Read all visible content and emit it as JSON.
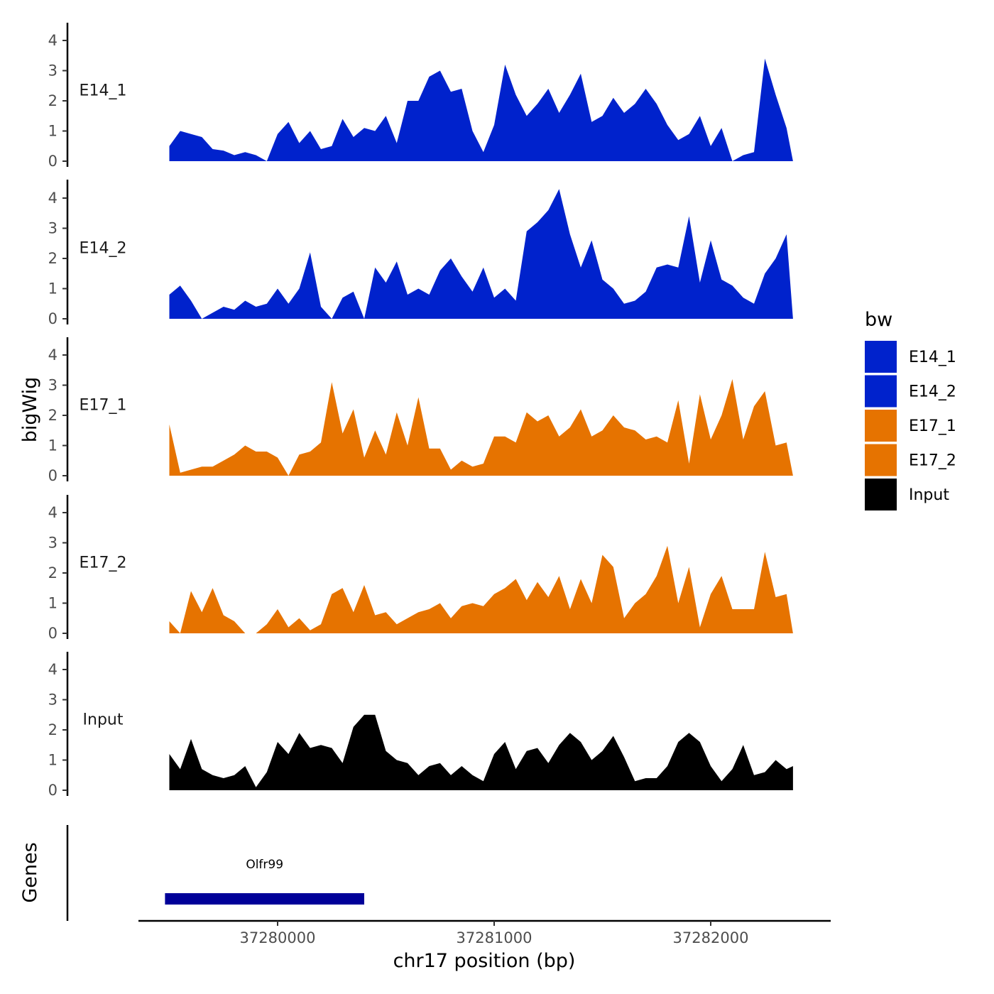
{
  "chart_data": {
    "type": "area",
    "xlabel": "chr17 position (bp)",
    "ylabel": "bigWig",
    "gene_track_label": "Genes",
    "xlim": [
      37279250,
      37282500
    ],
    "x_ticks": [
      37280000,
      37281000,
      37282000
    ],
    "x_tick_labels": [
      "37280000",
      "37281000",
      "37282000"
    ],
    "ylim": [
      0,
      4.6
    ],
    "y_ticks": [
      0,
      1,
      2,
      3,
      4
    ],
    "y_tick_labels": [
      "0",
      "1",
      "2",
      "3",
      "4"
    ],
    "legend": {
      "title": "bw",
      "position": "right",
      "entries": [
        {
          "label": "E14_1",
          "color": "#0022cc"
        },
        {
          "label": "E14_2",
          "color": "#0022cc"
        },
        {
          "label": "E17_1",
          "color": "#e67300"
        },
        {
          "label": "E17_2",
          "color": "#e67300"
        },
        {
          "label": "Input",
          "color": "#000000"
        }
      ]
    },
    "tracks": [
      {
        "name": "E14_1",
        "color": "#0022cc",
        "x": [
          37279500,
          37279550,
          37279600,
          37279650,
          37279700,
          37279750,
          37279800,
          37279850,
          37279900,
          37279950,
          37280000,
          37280050,
          37280100,
          37280150,
          37280200,
          37280250,
          37280300,
          37280350,
          37280400,
          37280450,
          37280500,
          37280550,
          37280600,
          37280650,
          37280700,
          37280750,
          37280800,
          37280850,
          37280900,
          37280950,
          37281000,
          37281050,
          37281100,
          37281150,
          37281200,
          37281250,
          37281300,
          37281350,
          37281400,
          37281450,
          37281500,
          37281550,
          37281600,
          37281650,
          37281700,
          37281750,
          37281800,
          37281850,
          37281900,
          37281950,
          37282000,
          37282050,
          37282100,
          37282150,
          37282200,
          37282250,
          37282300,
          37282350,
          37282380
        ],
        "y": [
          0.5,
          1.0,
          0.9,
          0.8,
          0.4,
          0.35,
          0.2,
          0.3,
          0.2,
          0.0,
          0.9,
          1.3,
          0.6,
          1.0,
          0.4,
          0.5,
          1.4,
          0.8,
          1.1,
          1.0,
          1.5,
          0.6,
          2.0,
          2.0,
          2.8,
          3.0,
          2.3,
          2.4,
          1.0,
          0.3,
          1.2,
          3.2,
          2.2,
          1.5,
          1.9,
          2.4,
          1.6,
          2.2,
          2.9,
          1.3,
          1.5,
          2.1,
          1.6,
          1.9,
          2.4,
          1.9,
          1.2,
          0.7,
          0.9,
          1.5,
          0.5,
          1.1,
          0.0,
          0.2,
          0.3,
          3.4,
          2.2,
          1.1,
          0.0
        ]
      },
      {
        "name": "E14_2",
        "color": "#0022cc",
        "x": [
          37279500,
          37279550,
          37279600,
          37279650,
          37279700,
          37279750,
          37279800,
          37279850,
          37279900,
          37279950,
          37280000,
          37280050,
          37280100,
          37280150,
          37280200,
          37280250,
          37280300,
          37280350,
          37280400,
          37280450,
          37280500,
          37280550,
          37280600,
          37280650,
          37280700,
          37280750,
          37280800,
          37280850,
          37280900,
          37280950,
          37281000,
          37281050,
          37281100,
          37281150,
          37281200,
          37281250,
          37281300,
          37281350,
          37281400,
          37281450,
          37281500,
          37281550,
          37281600,
          37281650,
          37281700,
          37281750,
          37281800,
          37281850,
          37281900,
          37281950,
          37282000,
          37282050,
          37282100,
          37282150,
          37282200,
          37282250,
          37282300,
          37282350,
          37282380
        ],
        "y": [
          0.8,
          1.1,
          0.6,
          0.0,
          0.2,
          0.4,
          0.3,
          0.6,
          0.4,
          0.5,
          1.0,
          0.5,
          1.0,
          2.2,
          0.4,
          0.0,
          0.7,
          0.9,
          0.0,
          1.7,
          1.2,
          1.9,
          0.8,
          1.0,
          0.8,
          1.6,
          2.0,
          1.4,
          0.9,
          1.7,
          0.7,
          1.0,
          0.6,
          2.9,
          3.2,
          3.6,
          4.3,
          2.8,
          1.7,
          2.6,
          1.3,
          1.0,
          0.5,
          0.6,
          0.9,
          1.7,
          1.8,
          1.7,
          3.4,
          1.2,
          2.6,
          1.3,
          1.1,
          0.7,
          0.5,
          1.5,
          2.0,
          2.8,
          0.0
        ]
      },
      {
        "name": "E17_1",
        "color": "#e67300",
        "x": [
          37279500,
          37279550,
          37279600,
          37279650,
          37279700,
          37279750,
          37279800,
          37279850,
          37279900,
          37279950,
          37280000,
          37280050,
          37280100,
          37280150,
          37280200,
          37280250,
          37280300,
          37280350,
          37280400,
          37280450,
          37280500,
          37280550,
          37280600,
          37280650,
          37280700,
          37280750,
          37280800,
          37280850,
          37280900,
          37280950,
          37281000,
          37281050,
          37281100,
          37281150,
          37281200,
          37281250,
          37281300,
          37281350,
          37281400,
          37281450,
          37281500,
          37281550,
          37281600,
          37281650,
          37281700,
          37281750,
          37281800,
          37281850,
          37281900,
          37281950,
          37282000,
          37282050,
          37282100,
          37282150,
          37282200,
          37282250,
          37282300,
          37282350,
          37282380
        ],
        "y": [
          1.7,
          0.1,
          0.2,
          0.3,
          0.3,
          0.5,
          0.7,
          1.0,
          0.8,
          0.8,
          0.6,
          0.0,
          0.7,
          0.8,
          1.1,
          3.1,
          1.4,
          2.2,
          0.6,
          1.5,
          0.7,
          2.1,
          1.0,
          2.6,
          0.9,
          0.9,
          0.2,
          0.5,
          0.3,
          0.4,
          1.3,
          1.3,
          1.1,
          2.1,
          1.8,
          2.0,
          1.3,
          1.6,
          2.2,
          1.3,
          1.5,
          2.0,
          1.6,
          1.5,
          1.2,
          1.3,
          1.1,
          2.5,
          0.4,
          2.7,
          1.2,
          2.0,
          3.2,
          1.2,
          2.3,
          2.8,
          1.0,
          1.1,
          0.0
        ]
      },
      {
        "name": "E17_2",
        "color": "#e67300",
        "x": [
          37279500,
          37279550,
          37279600,
          37279650,
          37279700,
          37279750,
          37279800,
          37279850,
          37279900,
          37279950,
          37280000,
          37280050,
          37280100,
          37280150,
          37280200,
          37280250,
          37280300,
          37280350,
          37280400,
          37280450,
          37280500,
          37280550,
          37280600,
          37280650,
          37280700,
          37280750,
          37280800,
          37280850,
          37280900,
          37280950,
          37281000,
          37281050,
          37281100,
          37281150,
          37281200,
          37281250,
          37281300,
          37281350,
          37281400,
          37281450,
          37281500,
          37281550,
          37281600,
          37281650,
          37281700,
          37281750,
          37281800,
          37281850,
          37281900,
          37281950,
          37282000,
          37282050,
          37282100,
          37282150,
          37282200,
          37282250,
          37282300,
          37282350,
          37282380
        ],
        "y": [
          0.4,
          0.0,
          1.4,
          0.7,
          1.5,
          0.6,
          0.4,
          0.0,
          0.0,
          0.3,
          0.8,
          0.2,
          0.5,
          0.1,
          0.3,
          1.3,
          1.5,
          0.7,
          1.6,
          0.6,
          0.7,
          0.3,
          0.5,
          0.7,
          0.8,
          1.0,
          0.5,
          0.9,
          1.0,
          0.9,
          1.3,
          1.5,
          1.8,
          1.1,
          1.7,
          1.2,
          1.9,
          0.8,
          1.8,
          1.0,
          2.6,
          2.2,
          0.5,
          1.0,
          1.3,
          1.9,
          2.9,
          1.0,
          2.2,
          0.2,
          1.3,
          1.9,
          0.8,
          0.8,
          0.8,
          2.7,
          1.2,
          1.3,
          0.0
        ]
      },
      {
        "name": "Input",
        "color": "#000000",
        "x": [
          37279500,
          37279550,
          37279600,
          37279650,
          37279700,
          37279750,
          37279800,
          37279850,
          37279900,
          37279950,
          37280000,
          37280050,
          37280100,
          37280150,
          37280200,
          37280250,
          37280300,
          37280350,
          37280400,
          37280450,
          37280500,
          37280550,
          37280600,
          37280650,
          37280700,
          37280750,
          37280800,
          37280850,
          37280900,
          37280950,
          37281000,
          37281050,
          37281100,
          37281150,
          37281200,
          37281250,
          37281300,
          37281350,
          37281400,
          37281450,
          37281500,
          37281550,
          37281600,
          37281650,
          37281700,
          37281750,
          37281800,
          37281850,
          37281900,
          37281950,
          37282000,
          37282050,
          37282100,
          37282150,
          37282200,
          37282250,
          37282300,
          37282350,
          37282380
        ],
        "y": [
          1.2,
          0.7,
          1.7,
          0.7,
          0.5,
          0.4,
          0.5,
          0.8,
          0.1,
          0.6,
          1.6,
          1.2,
          1.9,
          1.4,
          1.5,
          1.4,
          0.9,
          2.1,
          2.5,
          2.5,
          1.3,
          1.0,
          0.9,
          0.5,
          0.8,
          0.9,
          0.5,
          0.8,
          0.5,
          0.3,
          1.2,
          1.6,
          0.7,
          1.3,
          1.4,
          0.9,
          1.5,
          1.9,
          1.6,
          1.0,
          1.3,
          1.8,
          1.1,
          0.3,
          0.4,
          0.4,
          0.8,
          1.6,
          1.9,
          1.6,
          0.8,
          0.3,
          0.7,
          1.5,
          0.5,
          0.6,
          1.0,
          0.7,
          0.8
        ]
      }
    ],
    "genes": [
      {
        "name": "Olfr99",
        "start": 37279480,
        "end": 37280400,
        "color": "#000099"
      }
    ]
  }
}
